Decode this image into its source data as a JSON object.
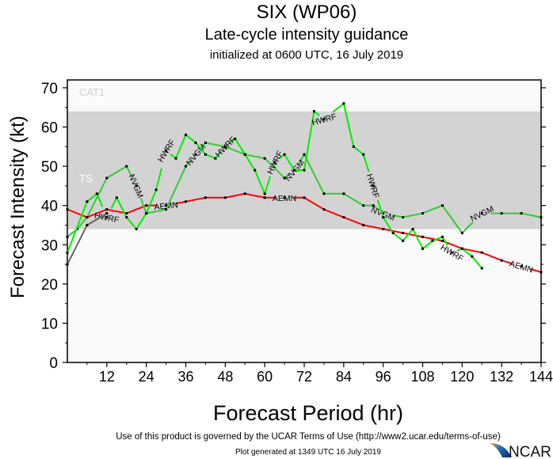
{
  "title": "SIX (WP06)",
  "subtitle": "Late-cycle intensity guidance",
  "initialized": "initialized at 0600 UTC, 16 July 2019",
  "footer": {
    "terms": "Use of this product is governed by the UCAR Terms of Use (http://www2.ucar.edu/terms-of-use)",
    "generated": "Plot generated at 1349 UTC   16 July 2019",
    "logo_text": "NCAR"
  },
  "chart_data": {
    "type": "line",
    "xlabel": "Forecast Period (hr)",
    "ylabel": "Forecast Intensity (kt)",
    "xlim": [
      0,
      144
    ],
    "ylim": [
      0,
      72
    ],
    "xticks": [
      12,
      24,
      36,
      48,
      60,
      72,
      84,
      96,
      108,
      120,
      132,
      144
    ],
    "yticks": [
      0,
      10,
      20,
      30,
      40,
      50,
      60,
      70
    ],
    "bands": [
      {
        "label": "TS",
        "from": 34,
        "to": 64,
        "color": "#d3d3d3"
      },
      {
        "label": "CAT1",
        "from": 64,
        "to": 72,
        "color": "#fafafa"
      }
    ],
    "series": [
      {
        "name": "AEMN",
        "color": "#ff0000",
        "label_hours": [
          30,
          66,
          99,
          138
        ],
        "points": [
          [
            0,
            39
          ],
          [
            6,
            37
          ],
          [
            12,
            39
          ],
          [
            18,
            38
          ],
          [
            24,
            40
          ],
          [
            30,
            40
          ],
          [
            36,
            41
          ],
          [
            42,
            42
          ],
          [
            48,
            42
          ],
          [
            54,
            43
          ],
          [
            60,
            42
          ],
          [
            66,
            42
          ],
          [
            72,
            42
          ],
          [
            78,
            39
          ],
          [
            84,
            37
          ],
          [
            90,
            35
          ],
          [
            96,
            34
          ],
          [
            102,
            33
          ],
          [
            108,
            32
          ],
          [
            114,
            31
          ],
          [
            120,
            29
          ],
          [
            126,
            28
          ],
          [
            132,
            26
          ],
          [
            138,
            24.5
          ],
          [
            144,
            23
          ]
        ]
      },
      {
        "name": "NVGM",
        "color": "#33cc33",
        "label_hours": [
          21,
          39,
          69,
          96,
          126
        ],
        "points": [
          [
            0,
            32
          ],
          [
            3,
            34
          ],
          [
            6,
            37
          ],
          [
            12,
            47
          ],
          [
            18,
            50
          ],
          [
            21,
            45
          ],
          [
            24,
            38
          ],
          [
            30,
            39
          ],
          [
            36,
            50
          ],
          [
            39,
            53
          ],
          [
            42,
            56
          ],
          [
            48,
            55
          ],
          [
            54,
            53
          ],
          [
            60,
            52
          ],
          [
            66,
            47
          ],
          [
            69,
            49
          ],
          [
            72,
            53
          ],
          [
            78,
            43
          ],
          [
            84,
            43
          ],
          [
            90,
            40
          ],
          [
            93,
            40
          ],
          [
            96,
            38
          ],
          [
            102,
            37
          ],
          [
            108,
            38
          ],
          [
            114,
            40
          ],
          [
            120,
            33
          ],
          [
            126,
            38
          ],
          [
            132,
            38
          ],
          [
            138,
            38
          ],
          [
            144,
            37
          ]
        ]
      },
      {
        "name": "HWRF",
        "color": "#00ee00",
        "label_hours": [
          12,
          30,
          48,
          63,
          78,
          93,
          117
        ],
        "points": [
          [
            0,
            28
          ],
          [
            6,
            41
          ],
          [
            9,
            43
          ],
          [
            12,
            37
          ],
          [
            15,
            42
          ],
          [
            18,
            37
          ],
          [
            21,
            34
          ],
          [
            24,
            38
          ],
          [
            27,
            44
          ],
          [
            30,
            54
          ],
          [
            33,
            52
          ],
          [
            36,
            58
          ],
          [
            39,
            56
          ],
          [
            42,
            53
          ],
          [
            45,
            52
          ],
          [
            48,
            55
          ],
          [
            51,
            57
          ],
          [
            54,
            53
          ],
          [
            57,
            49
          ],
          [
            60,
            43
          ],
          [
            63,
            51
          ],
          [
            66,
            53
          ],
          [
            69,
            49
          ],
          [
            72,
            49
          ],
          [
            75,
            64
          ],
          [
            78,
            62
          ],
          [
            84,
            66
          ],
          [
            87,
            55
          ],
          [
            90,
            53
          ],
          [
            93,
            45
          ],
          [
            96,
            37
          ],
          [
            99,
            33
          ],
          [
            102,
            31
          ],
          [
            105,
            34
          ],
          [
            108,
            29
          ],
          [
            111,
            31
          ],
          [
            114,
            32
          ],
          [
            117,
            28
          ],
          [
            120,
            29
          ],
          [
            123,
            27
          ],
          [
            126,
            24
          ]
        ]
      },
      {
        "color": "#666666",
        "label_hours": [],
        "points": [
          [
            0,
            25
          ],
          [
            6,
            35
          ],
          [
            12,
            38
          ]
        ]
      }
    ]
  }
}
